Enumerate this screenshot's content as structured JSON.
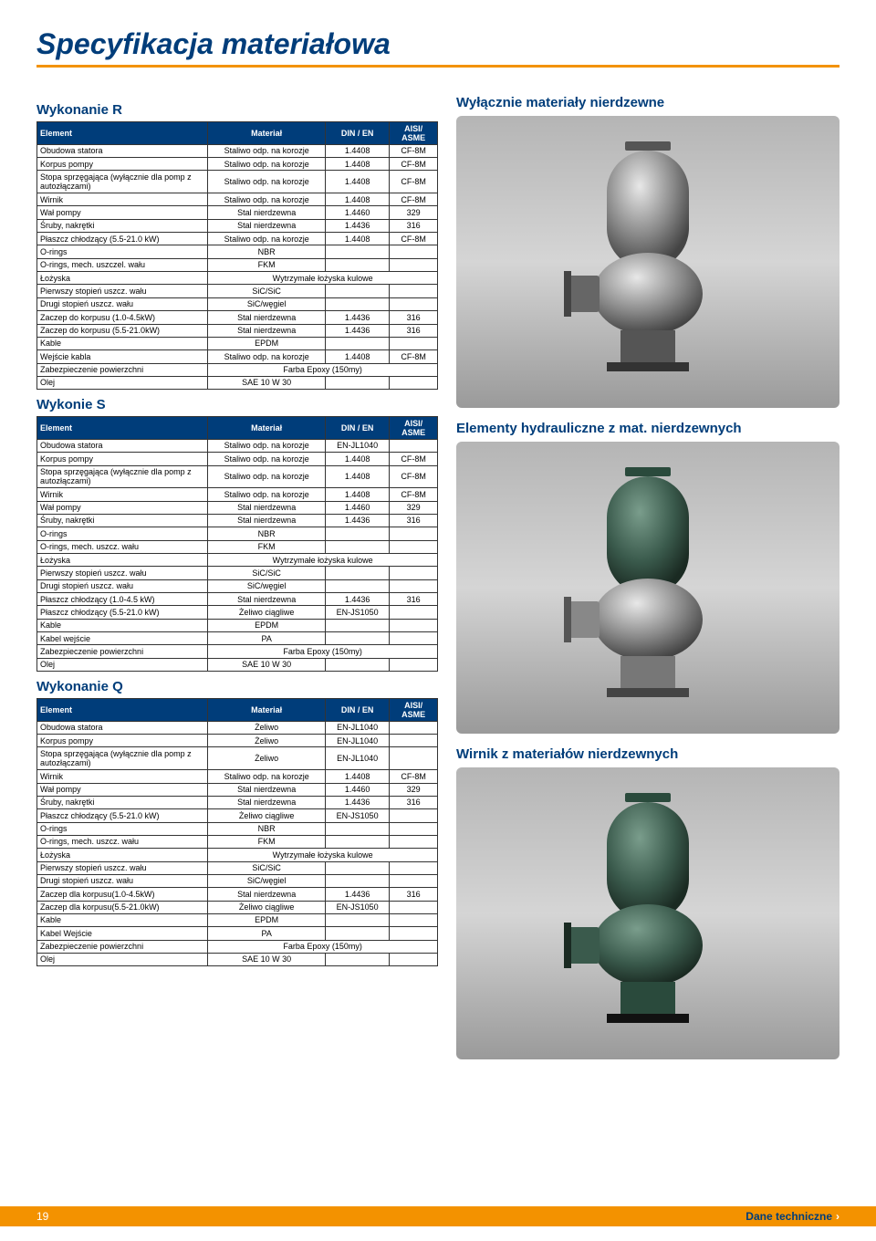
{
  "page_title": "Specyfikacja materiałowa",
  "footer": {
    "page_num": "19",
    "right": "Dane techniczne"
  },
  "right": {
    "label1": "Wyłącznie materiały nierdzewne",
    "label2": "Elementy hydrauliczne z mat. nierdzewnych",
    "label3": "Wirnik z materiałów nierdzewnych"
  },
  "sections": {
    "R": {
      "title": "Wykonanie R",
      "headers": [
        "Element",
        "Materiał",
        "DIN / EN",
        "AISI/ ASME"
      ],
      "rows": [
        [
          "Obudowa statora",
          "Staliwo odp. na korozje",
          "1.4408",
          "CF-8M"
        ],
        [
          "Korpus pompy",
          "Staliwo odp. na korozje",
          "1.4408",
          "CF-8M"
        ],
        [
          "Stopa sprzęgająca (wyłącznie dla pomp z autozłączami)",
          "Staliwo odp. na korozje",
          "1.4408",
          "CF-8M"
        ],
        [
          "Wirnik",
          "Staliwo odp. na korozje",
          "1.4408",
          "CF-8M"
        ],
        [
          "Wał pompy",
          "Stal nierdzewna",
          "1.4460",
          "329"
        ],
        [
          "Śruby, nakrętki",
          "Stal nierdzewna",
          "1.4436",
          "316"
        ],
        [
          "Płaszcz chłodzący (5.5-21.0 kW)",
          "Staliwo odp. na korozje",
          "1.4408",
          "CF-8M"
        ],
        [
          "O-rings",
          "NBR",
          "",
          ""
        ],
        [
          "O-rings, mech. uszczel. wału",
          "FKM",
          "",
          ""
        ],
        [
          "Łożyska",
          "Wytrzymałe łożyska kulowe",
          "SPAN",
          "SPAN"
        ],
        [
          "Pierwszy stopień uszcz. wału",
          "SiC/SiC",
          "",
          ""
        ],
        [
          "Drugi stopień uszcz. wału",
          "SiC/węgiel",
          "",
          ""
        ],
        [
          "Zaczep do korpusu (1.0-4.5kW)",
          "Stal nierdzewna",
          "1.4436",
          "316"
        ],
        [
          "Zaczep do korpusu (5.5-21.0kW)",
          "Stal nierdzewna",
          "1.4436",
          "316"
        ],
        [
          "Kable",
          "EPDM",
          "",
          ""
        ],
        [
          "Wejście kabla",
          "Staliwo odp. na korozje",
          "1.4408",
          "CF-8M"
        ],
        [
          "Zabezpieczenie powierzchni",
          "Farba Epoxy (150my)",
          "SPAN",
          "SPAN"
        ],
        [
          "Olej",
          "SAE 10 W 30",
          "",
          ""
        ]
      ]
    },
    "S": {
      "title": "Wykonie S",
      "headers": [
        "Element",
        "Materiał",
        "DIN / EN",
        "AISI/ ASME"
      ],
      "rows": [
        [
          "Obudowa statora",
          "Staliwo odp. na korozje",
          "EN-JL1040",
          ""
        ],
        [
          "Korpus pompy",
          "Staliwo odp. na korozje",
          "1.4408",
          "CF-8M"
        ],
        [
          "Stopa sprzęgająca (wyłącznie dla pomp z autozłączami)",
          "Staliwo odp. na korozje",
          "1.4408",
          "CF-8M"
        ],
        [
          "Wirnik",
          "Staliwo odp. na korozje",
          "1.4408",
          "CF-8M"
        ],
        [
          "Wał pompy",
          "Stal nierdzewna",
          "1.4460",
          "329"
        ],
        [
          "Śruby, nakrętki",
          "Stal nierdzewna",
          "1.4436",
          "316"
        ],
        [
          "O-rings",
          "NBR",
          "",
          ""
        ],
        [
          "O-rings, mech. uszcz. wału",
          "FKM",
          "",
          ""
        ],
        [
          "Łożyska",
          "Wytrzymałe łożyska kulowe",
          "SPAN",
          "SPAN"
        ],
        [
          "Pierwszy stopień uszcz. wału",
          "SiC/SiC",
          "",
          ""
        ],
        [
          "Drugi stopień uszcz. wału",
          "SiC/węgiel",
          "",
          ""
        ],
        [
          "Płaszcz chłodzący (1.0-4.5 kW)",
          "Stal nierdzewna",
          "1.4436",
          "316"
        ],
        [
          "Płaszcz chłodzący (5.5-21.0 kW)",
          "Żeliwo ciągliwe",
          "EN-JS1050",
          ""
        ],
        [
          "Kable",
          "EPDM",
          "",
          ""
        ],
        [
          "Kabel wejście",
          "PA",
          "",
          ""
        ],
        [
          "Zabezpieczenie powierzchni",
          "Farba Epoxy (150my)",
          "SPAN",
          "SPAN"
        ],
        [
          "Olej",
          "SAE 10 W 30",
          "",
          ""
        ]
      ]
    },
    "Q": {
      "title": "Wykonanie Q",
      "headers": [
        "Element",
        "Materiał",
        "DIN / EN",
        "AISI/ ASME"
      ],
      "rows": [
        [
          "Obudowa statora",
          "Żeliwo",
          "EN-JL1040",
          ""
        ],
        [
          "Korpus pompy",
          "Żeliwo",
          "EN-JL1040",
          ""
        ],
        [
          "Stopa sprzęgająca (wyłącznie dla pomp z autozłączami)",
          "Żeliwo",
          "EN-JL1040",
          ""
        ],
        [
          "Wirnik",
          "Staliwo odp. na korozje",
          "1.4408",
          "CF-8M"
        ],
        [
          "Wał pompy",
          "Stal nierdzewna",
          "1.4460",
          "329"
        ],
        [
          "Śruby, nakrętki",
          "Stal nierdzewna",
          "1.4436",
          "316"
        ],
        [
          "Płaszcz chłodzący (5.5-21.0 kW)",
          "Żeliwo ciągliwe",
          "EN-JS1050",
          ""
        ],
        [
          "O-rings",
          "NBR",
          "",
          ""
        ],
        [
          "O-rings, mech. uszcz. wału",
          "FKM",
          "",
          ""
        ],
        [
          "Łożyska",
          "Wytrzymałe łożyska kulowe",
          "SPAN",
          "SPAN"
        ],
        [
          "Pierwszy stopień uszcz. wału",
          "SiC/SiC",
          "",
          ""
        ],
        [
          "Drugi stopień uszcz. wału",
          "SiC/węgiel",
          "",
          ""
        ],
        [
          "Zaczep dla korpusu(1.0-4.5kW)",
          "Stal nierdzewna",
          "1.4436",
          "316"
        ],
        [
          "Zaczep dla korpusu(5.5-21.0kW)",
          "Żeliwo ciągliwe",
          "EN-JS1050",
          ""
        ],
        [
          "Kable",
          "EPDM",
          "",
          ""
        ],
        [
          "Kabel Wejście",
          "PA",
          "",
          ""
        ],
        [
          "Zabezpieczenie powierzchni",
          "Farba Epoxy (150my)",
          "SPAN",
          "SPAN"
        ],
        [
          "Olej",
          "SAE 10 W 30",
          "",
          ""
        ]
      ]
    }
  },
  "colors": {
    "brand_blue": "#003d7a",
    "brand_orange": "#f39200",
    "table_border": "#333333",
    "background": "#ffffff"
  }
}
